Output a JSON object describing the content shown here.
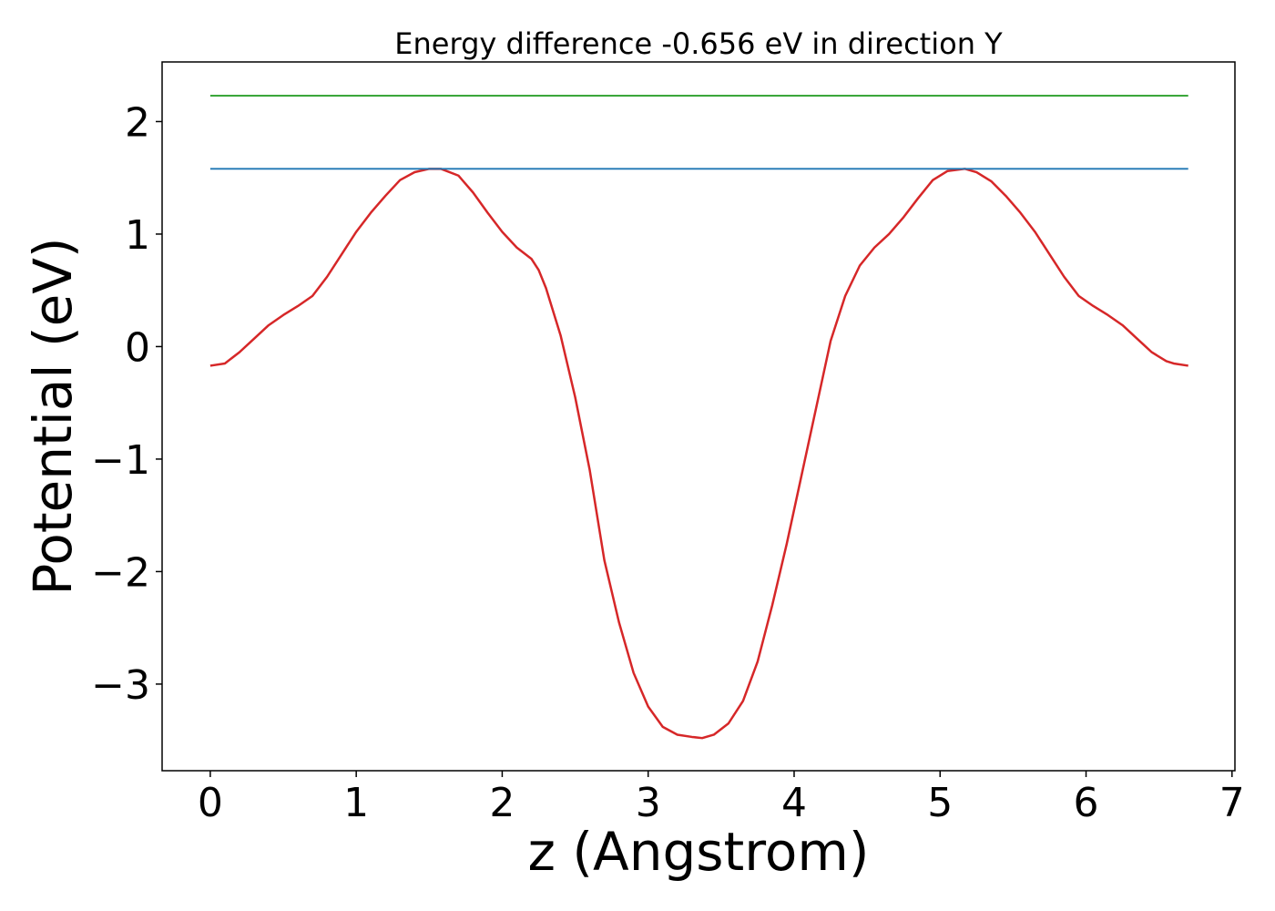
{
  "chart_data": {
    "type": "line",
    "title": "Energy difference -0.656 eV in direction Y",
    "xlabel": "z (Angstrom)",
    "ylabel": "Potential (eV)",
    "xlim": [
      -0.33,
      7.02
    ],
    "ylim": [
      -3.77,
      2.53
    ],
    "grid": false,
    "x_ticks": [
      0,
      1,
      2,
      3,
      4,
      5,
      6,
      7
    ],
    "x_tick_labels": [
      "0",
      "1",
      "2",
      "3",
      "4",
      "5",
      "6",
      "7"
    ],
    "y_ticks": [
      2,
      1,
      0,
      -1,
      -2,
      -3
    ],
    "y_tick_labels": [
      "2",
      "1",
      "0",
      "−1",
      "−2",
      "−3"
    ],
    "series": [
      {
        "color": "#d62728",
        "x": [
          0.0,
          0.1,
          0.2,
          0.3,
          0.4,
          0.5,
          0.6,
          0.7,
          0.8,
          0.9,
          1.0,
          1.1,
          1.2,
          1.3,
          1.4,
          1.5,
          1.58,
          1.7,
          1.8,
          1.9,
          2.0,
          2.1,
          2.2,
          2.25,
          2.3,
          2.4,
          2.5,
          2.6,
          2.7,
          2.8,
          2.9,
          3.0,
          3.1,
          3.2,
          3.3,
          3.37,
          3.45,
          3.55,
          3.65,
          3.75,
          3.85,
          3.95,
          4.05,
          4.15,
          4.25,
          4.35,
          4.45,
          4.5,
          4.55,
          4.65,
          4.75,
          4.85,
          4.95,
          5.05,
          5.17,
          5.25,
          5.35,
          5.45,
          5.55,
          5.65,
          5.75,
          5.85,
          5.95,
          6.05,
          6.15,
          6.25,
          6.35,
          6.45,
          6.55,
          6.6,
          6.7
        ],
        "y": [
          -0.17,
          -0.15,
          -0.05,
          0.07,
          0.19,
          0.28,
          0.36,
          0.45,
          0.62,
          0.82,
          1.02,
          1.19,
          1.34,
          1.48,
          1.55,
          1.58,
          1.58,
          1.52,
          1.37,
          1.19,
          1.02,
          0.88,
          0.78,
          0.68,
          0.52,
          0.1,
          -0.45,
          -1.1,
          -1.9,
          -2.45,
          -2.9,
          -3.2,
          -3.38,
          -3.45,
          -3.47,
          -3.48,
          -3.45,
          -3.35,
          -3.15,
          -2.8,
          -2.3,
          -1.75,
          -1.15,
          -0.55,
          0.05,
          0.45,
          0.72,
          0.8,
          0.88,
          1.0,
          1.15,
          1.32,
          1.48,
          1.56,
          1.58,
          1.55,
          1.47,
          1.34,
          1.19,
          1.02,
          0.82,
          0.62,
          0.45,
          0.36,
          0.28,
          0.19,
          0.07,
          -0.05,
          -0.13,
          -0.15,
          -0.17
        ]
      },
      {
        "color": "#1f77b4",
        "x": [
          0.0,
          6.7
        ],
        "y": [
          1.58,
          1.58
        ]
      },
      {
        "color": "#2ca02c",
        "x": [
          0.0,
          6.7
        ],
        "y": [
          2.23,
          2.23
        ]
      }
    ]
  }
}
